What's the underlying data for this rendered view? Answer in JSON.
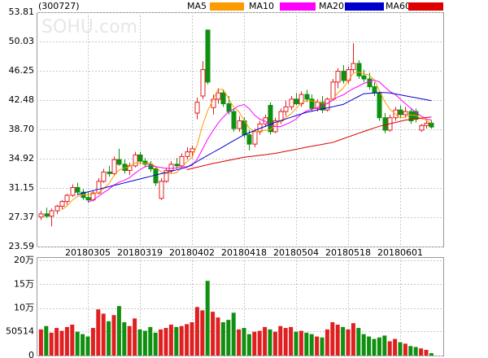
{
  "chart_data": [
    {
      "type": "candlestick",
      "title": "(300727)",
      "watermark": "SOHU.com",
      "categories": [
        null,
        null,
        null,
        null,
        null,
        null,
        null,
        null,
        null,
        "20180305",
        null,
        null,
        null,
        null,
        null,
        null,
        null,
        null,
        null,
        "20180319",
        null,
        null,
        null,
        null,
        null,
        null,
        null,
        null,
        null,
        "20180402",
        null,
        null,
        null,
        null,
        null,
        null,
        null,
        null,
        null,
        "20180418",
        null,
        null,
        null,
        null,
        null,
        null,
        null,
        null,
        null,
        "20180504",
        null,
        null,
        null,
        null,
        null,
        null,
        null,
        null,
        null,
        "20180518",
        null,
        null,
        null,
        null,
        null,
        null,
        null,
        null,
        null,
        "20180601",
        null,
        null,
        null,
        null,
        null,
        null
      ],
      "open": [
        27.4,
        27.8,
        27.5,
        28.2,
        28.8,
        29.4,
        30.2,
        31.2,
        30.6,
        29.9,
        29.6,
        30.5,
        32.0,
        33.2,
        33.0,
        34.8,
        34.2,
        33.4,
        34.0,
        35.4,
        34.6,
        34.2,
        33.6,
        29.8,
        32.0,
        33.4,
        34.2,
        34.0,
        35.2,
        35.8,
        40.8,
        43.0,
        51.5,
        41.5,
        42.6,
        43.4,
        42.0,
        41.0,
        38.8,
        39.8,
        38.0,
        36.8,
        38.4,
        39.4,
        41.8,
        38.4,
        39.8,
        41.0,
        41.6,
        42.6,
        42.0,
        43.2,
        42.6,
        41.4,
        42.2,
        41.2,
        42.6,
        44.8,
        46.2,
        45.0,
        46.4,
        47.2,
        45.6,
        45.2,
        44.2,
        43.4,
        40.2,
        38.6,
        40.2,
        41.2,
        40.6,
        41.0,
        41.0,
        38.6,
        39.2,
        39.5
      ],
      "high": [
        28.2,
        28.6,
        28.5,
        29.0,
        29.6,
        30.4,
        31.6,
        31.8,
        31.0,
        30.6,
        30.8,
        32.4,
        33.6,
        34.0,
        35.2,
        36.2,
        34.8,
        34.4,
        35.8,
        35.8,
        35.0,
        34.6,
        33.8,
        32.4,
        33.8,
        34.6,
        35.0,
        35.6,
        36.4,
        36.6,
        42.8,
        47.5,
        51.6,
        43.2,
        44.0,
        43.8,
        43.0,
        41.4,
        40.4,
        40.2,
        38.6,
        38.8,
        39.8,
        40.6,
        42.2,
        40.2,
        41.4,
        42.4,
        43.0,
        43.4,
        43.6,
        43.8,
        43.2,
        42.6,
        43.0,
        42.8,
        45.2,
        46.6,
        47.0,
        46.8,
        49.8,
        47.6,
        46.4,
        46.0,
        44.8,
        43.6,
        40.8,
        40.6,
        41.6,
        41.8,
        41.6,
        41.4,
        41.4,
        39.4,
        39.8,
        39.9
      ],
      "low": [
        27.0,
        27.3,
        26.2,
        27.8,
        28.4,
        29.0,
        30.0,
        30.2,
        29.6,
        29.2,
        29.4,
        30.3,
        31.8,
        32.6,
        32.8,
        34.0,
        33.0,
        32.8,
        33.8,
        34.2,
        33.8,
        33.2,
        31.4,
        29.6,
        31.8,
        33.0,
        33.6,
        33.8,
        34.8,
        35.0,
        40.0,
        42.6,
        44.5,
        40.6,
        42.0,
        41.6,
        40.6,
        38.4,
        38.4,
        37.6,
        36.0,
        36.4,
        38.0,
        39.0,
        38.0,
        38.2,
        39.4,
        40.4,
        41.2,
        41.8,
        41.6,
        42.2,
        41.0,
        41.0,
        40.8,
        41.0,
        42.4,
        44.0,
        44.6,
        44.6,
        46.0,
        45.2,
        44.8,
        43.8,
        43.0,
        39.8,
        38.2,
        38.4,
        39.8,
        40.2,
        40.2,
        39.4,
        39.6,
        38.4,
        38.8,
        38.8
      ],
      "close": [
        27.8,
        27.5,
        28.2,
        28.8,
        29.4,
        30.2,
        31.2,
        30.6,
        29.9,
        29.6,
        30.5,
        32.0,
        33.2,
        33.0,
        34.8,
        34.2,
        33.4,
        34.0,
        35.4,
        34.6,
        34.2,
        33.6,
        31.8,
        32.0,
        33.4,
        34.2,
        34.0,
        35.2,
        35.8,
        36.2,
        42.2,
        46.4,
        44.8,
        42.6,
        43.4,
        42.0,
        41.0,
        38.8,
        39.8,
        38.0,
        36.8,
        38.4,
        39.4,
        40.2,
        38.4,
        39.8,
        41.0,
        41.6,
        42.6,
        42.0,
        43.2,
        42.6,
        41.4,
        42.2,
        41.2,
        42.6,
        44.8,
        46.2,
        45.0,
        46.4,
        47.2,
        45.6,
        45.2,
        44.2,
        43.4,
        40.2,
        38.6,
        40.2,
        41.2,
        40.6,
        41.0,
        39.8,
        40.0,
        39.2,
        39.5,
        39.0
      ],
      "up_color": "#e02020",
      "down_color": "#109010",
      "series": [
        {
          "name": "MA5",
          "color": "#ff9900",
          "values": [
            null,
            null,
            null,
            null,
            28.34,
            28.82,
            29.56,
            30.04,
            30.26,
            30.3,
            30.36,
            30.52,
            31.04,
            31.66,
            32.7,
            33.44,
            33.72,
            33.88,
            34.36,
            34.32,
            34.32,
            34.36,
            33.92,
            33.24,
            33.0,
            33.0,
            33.08,
            33.76,
            34.52,
            35.08,
            36.68,
            39.16,
            41.08,
            42.44,
            43.88,
            43.84,
            42.76,
            41.56,
            41.0,
            39.92,
            38.88,
            38.36,
            38.48,
            38.56,
            38.64,
            39.24,
            39.76,
            40.2,
            40.68,
            41.4,
            42.08,
            42.4,
            42.36,
            42.28,
            42.12,
            42.0,
            42.44,
            43.4,
            43.96,
            45.0,
            45.92,
            46.08,
            45.88,
            45.72,
            45.12,
            43.72,
            42.32,
            41.32,
            40.72,
            40.16,
            40.32,
            40.56,
            40.52,
            40.12,
            39.9,
            39.5
          ]
        },
        {
          "name": "MA10",
          "color": "#ff00ff",
          "values": [
            null,
            null,
            null,
            null,
            null,
            null,
            null,
            null,
            null,
            29.32,
            29.59,
            30.04,
            30.54,
            30.96,
            31.5,
            31.9,
            32.12,
            32.46,
            33.01,
            33.51,
            33.88,
            34.04,
            33.9,
            33.8,
            33.66,
            33.66,
            33.72,
            33.84,
            33.88,
            34.04,
            34.84,
            36.12,
            37.42,
            38.48,
            39.48,
            40.26,
            40.96,
            41.32,
            41.72,
            41.9,
            41.36,
            40.56,
            40.02,
            39.78,
            39.28,
            39.06,
            39.06,
            39.34,
            39.62,
            40.02,
            40.66,
            41.08,
            41.28,
            41.48,
            41.76,
            42.04,
            42.42,
            42.88,
            43.12,
            43.56,
            43.96,
            44.26,
            44.64,
            44.84,
            45.06,
            44.82,
            44.2,
            43.6,
            43.22,
            42.64,
            42.02,
            41.44,
            40.92,
            40.42,
            40.03,
            39.91
          ]
        },
        {
          "name": "MA20",
          "color": "#0000cc",
          "values": [
            null,
            null,
            null,
            null,
            null,
            null,
            null,
            30.3,
            30.47,
            30.63,
            30.8,
            30.97,
            31.13,
            31.3,
            31.47,
            31.63,
            31.8,
            31.97,
            32.13,
            32.3,
            32.47,
            32.63,
            32.8,
            32.97,
            33.13,
            33.3,
            33.47,
            33.63,
            33.8,
            34.18,
            34.56,
            34.95,
            35.33,
            35.71,
            36.09,
            36.47,
            36.85,
            37.24,
            37.62,
            38.0,
            38.27,
            38.53,
            38.8,
            39.07,
            39.33,
            39.6,
            39.82,
            40.03,
            40.25,
            40.47,
            40.68,
            40.9,
            41.04,
            41.19,
            41.33,
            41.47,
            41.61,
            41.76,
            41.9,
            42.25,
            42.6,
            42.95,
            43.3,
            43.35,
            43.4,
            43.45,
            43.45,
            43.4,
            43.28,
            43.15,
            43.03,
            42.9,
            42.78,
            42.65,
            42.53,
            42.4
          ]
        },
        {
          "name": "MA60",
          "color": "#dd0000",
          "values": [
            null,
            null,
            null,
            null,
            null,
            null,
            null,
            null,
            null,
            null,
            null,
            null,
            null,
            null,
            null,
            null,
            null,
            null,
            null,
            null,
            null,
            null,
            null,
            null,
            null,
            null,
            null,
            null,
            33.5,
            33.66,
            33.82,
            33.98,
            34.14,
            34.3,
            34.43,
            34.57,
            34.7,
            34.83,
            34.97,
            35.1,
            35.18,
            35.27,
            35.35,
            35.43,
            35.52,
            35.6,
            35.73,
            35.87,
            36.0,
            36.13,
            36.27,
            36.4,
            36.52,
            36.64,
            36.76,
            36.88,
            37.0,
            37.24,
            37.48,
            37.72,
            37.96,
            38.2,
            38.43,
            38.65,
            38.88,
            39.1,
            39.26,
            39.42,
            39.58,
            39.74,
            39.9,
            39.98,
            40.06,
            40.14,
            40.22,
            40.3
          ]
        }
      ],
      "ylim": [
        23.59,
        53.81
      ],
      "yticks": [
        53.81,
        50.03,
        46.25,
        42.48,
        {
          "value": 38.7,
          "label": "38.70"
        },
        34.92,
        31.15,
        27.37,
        23.59
      ],
      "grid": true
    },
    {
      "type": "bar",
      "values": [
        55000,
        62000,
        48000,
        58000,
        52000,
        60000,
        65000,
        50000,
        45000,
        40000,
        58000,
        97000,
        88000,
        72000,
        85000,
        104000,
        70000,
        62000,
        78000,
        55000,
        52000,
        60000,
        48000,
        55000,
        58000,
        65000,
        60000,
        62000,
        66000,
        70000,
        102000,
        95000,
        157000,
        92000,
        80000,
        70000,
        75000,
        90000,
        55000,
        58000,
        45000,
        50000,
        52000,
        60000,
        55000,
        50000,
        62000,
        58000,
        60000,
        50000,
        52000,
        48000,
        45000,
        40000,
        38000,
        55000,
        70000,
        65000,
        60000,
        55000,
        68000,
        58000,
        45000,
        40000,
        35000,
        38000,
        42000,
        30000,
        35000,
        28000,
        25000,
        20000,
        18000,
        15000,
        12000,
        5000
      ],
      "ylim": [
        0,
        200000
      ],
      "yticks": [
        {
          "value": 200000,
          "label": "20万"
        },
        {
          "value": 150000,
          "label": "15万"
        },
        {
          "value": 100000,
          "label": "10万"
        },
        50514,
        0
      ],
      "grid": true
    }
  ]
}
